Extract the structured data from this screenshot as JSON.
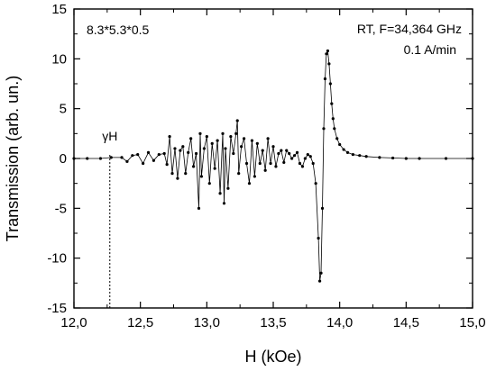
{
  "chart_data": {
    "type": "scatter",
    "title": "",
    "xlabel": "H (kOe)",
    "ylabel": "Transmission (arb. un.)",
    "xlim": [
      12.0,
      15.0
    ],
    "ylim": [
      -15,
      15
    ],
    "xticks": [
      12.0,
      12.5,
      13.0,
      13.5,
      14.0,
      14.5,
      15.0
    ],
    "xtick_labels": [
      "12,0",
      "12,5",
      "13,0",
      "13,5",
      "14,0",
      "14,5",
      "15,0"
    ],
    "yticks": [
      -15,
      -10,
      -5,
      0,
      5,
      10,
      15
    ],
    "ytick_labels": [
      "-15",
      "-10",
      "-5",
      "0",
      "5",
      "10",
      "15"
    ],
    "grid": false,
    "series": [
      {
        "marker": "dot",
        "color": "#000000",
        "x": [
          12.0,
          12.1,
          12.2,
          12.28,
          12.36,
          12.4,
          12.44,
          12.48,
          12.52,
          12.56,
          12.6,
          12.64,
          12.68,
          12.7,
          12.72,
          12.74,
          12.76,
          12.78,
          12.8,
          12.82,
          12.84,
          12.86,
          12.88,
          12.9,
          12.92,
          12.94,
          12.95,
          12.96,
          12.98,
          13.0,
          13.02,
          13.04,
          13.06,
          13.08,
          13.1,
          13.12,
          13.13,
          13.14,
          13.16,
          13.18,
          13.2,
          13.22,
          13.23,
          13.24,
          13.26,
          13.28,
          13.3,
          13.32,
          13.34,
          13.36,
          13.38,
          13.4,
          13.42,
          13.44,
          13.46,
          13.48,
          13.5,
          13.52,
          13.54,
          13.56,
          13.58,
          13.6,
          13.62,
          13.64,
          13.66,
          13.68,
          13.7,
          13.72,
          13.74,
          13.76,
          13.78,
          13.8,
          13.82,
          13.84,
          13.85,
          13.86,
          13.87,
          13.88,
          13.89,
          13.9,
          13.91,
          13.92,
          13.93,
          13.94,
          13.95,
          13.96,
          13.98,
          14.0,
          14.03,
          14.06,
          14.1,
          14.15,
          14.2,
          14.3,
          14.4,
          14.5,
          14.6,
          14.8,
          15.0
        ],
        "y": [
          0,
          0,
          0,
          0.1,
          0.1,
          -0.3,
          0.3,
          0.4,
          -0.5,
          0.6,
          -0.2,
          0.4,
          0.5,
          -0.6,
          2.2,
          -1.5,
          1.0,
          -2.0,
          0.8,
          1.2,
          -1.5,
          0.6,
          2.0,
          -0.8,
          0.5,
          -5.0,
          2.5,
          -1.8,
          1.0,
          2.2,
          -2.5,
          1.5,
          -1.0,
          1.8,
          -3.5,
          2.5,
          -4.5,
          1.0,
          -3.0,
          2.2,
          0.5,
          2.5,
          3.8,
          -1.5,
          1.2,
          2.0,
          -0.5,
          -2.5,
          1.8,
          -1.8,
          1.5,
          -0.5,
          0.8,
          -1.2,
          2.0,
          -0.5,
          1.2,
          -0.8,
          0.5,
          0.8,
          -0.4,
          0.8,
          0.5,
          0.0,
          0.3,
          0.6,
          -0.5,
          -0.8,
          0.0,
          0.4,
          0.2,
          -0.5,
          -2.5,
          -8.0,
          -12.3,
          -11.5,
          -5.0,
          3.0,
          8.0,
          10.5,
          10.8,
          9.5,
          7.5,
          5.5,
          4.0,
          3.0,
          2.0,
          1.4,
          0.9,
          0.6,
          0.4,
          0.3,
          0.2,
          0.1,
          0.05,
          0.0,
          0.0,
          0.0,
          0.0
        ]
      }
    ],
    "annotations": {
      "sample": "8.3*5.3*0.5",
      "conditions": "RT, F=34,364 GHz",
      "rate": "0.1 A/min",
      "marker_label": "γH",
      "marker_x": 12.27
    }
  }
}
